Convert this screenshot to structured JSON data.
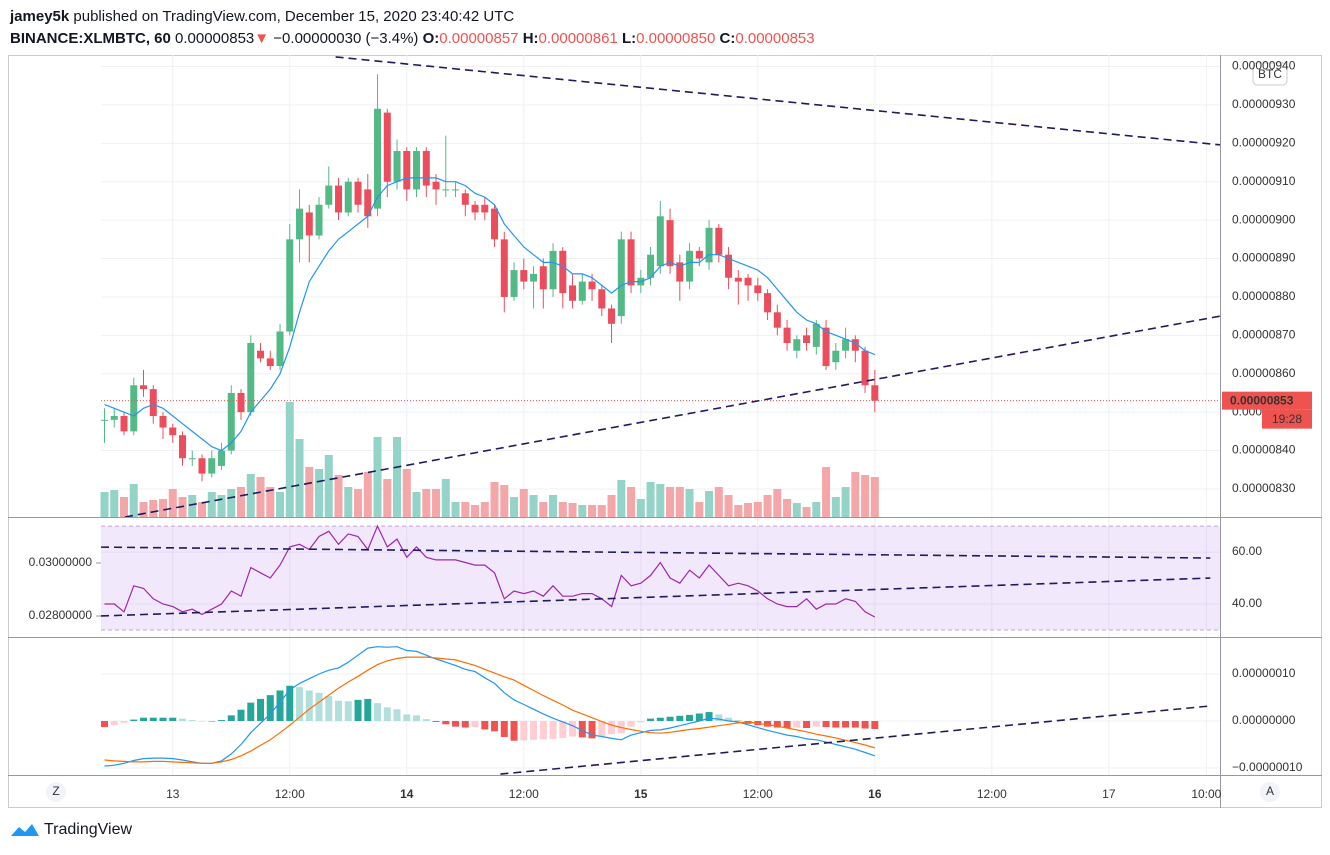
{
  "header": {
    "author": "jamey5k",
    "published": "published on TradingView.com, December 15, 2020 23:40:42 UTC",
    "symbol": "BINANCE:XLMBTC, 60",
    "last": "0.00000853",
    "arrow": "▼",
    "change": "−0.00000030 (−3.4%)",
    "o_label": "O:",
    "o": "0.00000857",
    "h_label": "H:",
    "h": "0.00000861",
    "l_label": "L:",
    "l": "0.00000850",
    "c_label": "C:",
    "c": "0.00000853"
  },
  "chart_data": {
    "type": "candlestick",
    "currency": "BTC",
    "up_color": "#53b987",
    "down_color": "#eb4d5c",
    "volume_up_color": "#94d3c8",
    "volume_down_color": "#f4a6a9",
    "xlim": [
      -0.36,
      114.4
    ],
    "xticks": [
      {
        "value": 7,
        "label": "13",
        "bold": false
      },
      {
        "value": 19,
        "label": "12:00",
        "bold": false
      },
      {
        "value": 31,
        "label": "14",
        "bold": true
      },
      {
        "value": 43,
        "label": "12:00",
        "bold": false
      },
      {
        "value": 55,
        "label": "15",
        "bold": true
      },
      {
        "value": 67,
        "label": "12:00",
        "bold": false
      },
      {
        "value": 79,
        "label": "16",
        "bold": true
      },
      {
        "value": 91,
        "label": "12:00",
        "bold": false
      },
      {
        "value": 103,
        "label": "17",
        "bold": false
      },
      {
        "value": 113,
        "label": "10:00",
        "bold": false
      }
    ],
    "ylim": [
      8.227e-06,
      9.43e-06
    ],
    "yticks": [
      {
        "value": 8.3e-06,
        "label": "0.00000830"
      },
      {
        "value": 8.4e-06,
        "label": "0.00000840"
      },
      {
        "value": 8.5e-06,
        "label": "0.00000850"
      },
      {
        "value": 8.6e-06,
        "label": "0.00000860"
      },
      {
        "value": 8.7e-06,
        "label": "0.00000870"
      },
      {
        "value": 8.8e-06,
        "label": "0.00000880"
      },
      {
        "value": 8.9e-06,
        "label": "0.00000890"
      },
      {
        "value": 9e-06,
        "label": "0.00000900"
      },
      {
        "value": 9.1e-06,
        "label": "0.00000910"
      },
      {
        "value": 9.2e-06,
        "label": "0.00000920"
      },
      {
        "value": 9.3e-06,
        "label": "0.00000930"
      },
      {
        "value": 9.4e-06,
        "label": "0.00000940"
      }
    ],
    "grid": true,
    "candles": [
      [
        8.48e-06,
        8.51e-06,
        8.42e-06,
        8.48e-06
      ],
      [
        8.48e-06,
        8.51e-06,
        8.46e-06,
        8.49e-06
      ],
      [
        8.49e-06,
        8.5e-06,
        8.44e-06,
        8.45e-06
      ],
      [
        8.45e-06,
        8.59e-06,
        8.44e-06,
        8.57e-06
      ],
      [
        8.57e-06,
        8.61e-06,
        8.54e-06,
        8.56e-06
      ],
      [
        8.56e-06,
        8.57e-06,
        8.47e-06,
        8.49e-06
      ],
      [
        8.49e-06,
        8.5e-06,
        8.43e-06,
        8.46e-06
      ],
      [
        8.46e-06,
        8.47e-06,
        8.42e-06,
        8.44e-06
      ],
      [
        8.44e-06,
        8.45e-06,
        8.36e-06,
        8.38e-06
      ],
      [
        8.38e-06,
        8.4e-06,
        8.36e-06,
        8.38e-06
      ],
      [
        8.38e-06,
        8.39e-06,
        8.32e-06,
        8.34e-06
      ],
      [
        8.34e-06,
        8.4e-06,
        8.33e-06,
        8.38e-06
      ],
      [
        8.36e-06,
        8.42e-06,
        8.35e-06,
        8.4e-06
      ],
      [
        8.4e-06,
        8.57e-06,
        8.39e-06,
        8.55e-06
      ],
      [
        8.55e-06,
        8.56e-06,
        8.48e-06,
        8.5e-06
      ],
      [
        8.5e-06,
        8.7e-06,
        8.49e-06,
        8.68e-06
      ],
      [
        8.66e-06,
        8.68e-06,
        8.63e-06,
        8.64e-06
      ],
      [
        8.64e-06,
        8.66e-06,
        8.61e-06,
        8.62e-06
      ],
      [
        8.62e-06,
        8.73e-06,
        8.61e-06,
        8.71e-06
      ],
      [
        8.71e-06,
        8.99e-06,
        8.7e-06,
        8.95e-06
      ],
      [
        8.95e-06,
        9.08e-06,
        8.89e-06,
        9.03e-06
      ],
      [
        9.02e-06,
        9.04e-06,
        8.89e-06,
        8.96e-06
      ],
      [
        8.96e-06,
        9.06e-06,
        8.95e-06,
        9.04e-06
      ],
      [
        9.04e-06,
        9.14e-06,
        9.03e-06,
        9.09e-06
      ],
      [
        9.09e-06,
        9.11e-06,
        9e-06,
        9.02e-06
      ],
      [
        9.02e-06,
        9.11e-06,
        9.01e-06,
        9.1e-06
      ],
      [
        9.1e-06,
        9.11e-06,
        9.02e-06,
        9.04e-06
      ],
      [
        9.08e-06,
        9.12e-06,
        8.98e-06,
        9.01e-06
      ],
      [
        9.03e-06,
        9.38e-06,
        9.01e-06,
        9.29e-06
      ],
      [
        9.28e-06,
        9.29e-06,
        9.06e-06,
        9.1e-06
      ],
      [
        9.1e-06,
        9.21e-06,
        9.08e-06,
        9.18e-06
      ],
      [
        9.18e-06,
        9.19e-06,
        9.05e-06,
        9.08e-06
      ],
      [
        9.08e-06,
        9.19e-06,
        9.06e-06,
        9.18e-06
      ],
      [
        9.18e-06,
        9.19e-06,
        9.06e-06,
        9.09e-06
      ],
      [
        9.1e-06,
        9.12e-06,
        9.04e-06,
        9.08e-06
      ],
      [
        9.08e-06,
        9.22e-06,
        9.06e-06,
        9.08e-06
      ],
      [
        9.08e-06,
        9.1e-06,
        9.06e-06,
        9.08e-06
      ],
      [
        9.07e-06,
        9.08e-06,
        9.01e-06,
        9.04e-06
      ],
      [
        9.04e-06,
        9.05e-06,
        9e-06,
        9.02e-06
      ],
      [
        9.04e-06,
        9.06e-06,
        9e-06,
        9.02e-06
      ],
      [
        9.03e-06,
        9.04e-06,
        8.93e-06,
        8.95e-06
      ],
      [
        8.95e-06,
        8.97e-06,
        8.76e-06,
        8.8e-06
      ],
      [
        8.8e-06,
        8.89e-06,
        8.79e-06,
        8.87e-06
      ],
      [
        8.87e-06,
        8.9e-06,
        8.82e-06,
        8.84e-06
      ],
      [
        8.84e-06,
        8.88e-06,
        8.77e-06,
        8.86e-06
      ],
      [
        8.88e-06,
        8.9e-06,
        8.77e-06,
        8.82e-06
      ],
      [
        8.82e-06,
        8.94e-06,
        8.8e-06,
        8.92e-06
      ],
      [
        8.92e-06,
        8.93e-06,
        8.77e-06,
        8.81e-06
      ],
      [
        8.83e-06,
        8.86e-06,
        8.77e-06,
        8.79e-06
      ],
      [
        8.79e-06,
        8.86e-06,
        8.78e-06,
        8.84e-06
      ],
      [
        8.84e-06,
        8.86e-06,
        8.79e-06,
        8.82e-06
      ],
      [
        8.82e-06,
        8.83e-06,
        8.75e-06,
        8.77e-06
      ],
      [
        8.77e-06,
        8.78e-06,
        8.68e-06,
        8.73e-06
      ],
      [
        8.75e-06,
        8.97e-06,
        8.73e-06,
        8.95e-06
      ],
      [
        8.95e-06,
        8.97e-06,
        8.81e-06,
        8.83e-06
      ],
      [
        8.83e-06,
        8.87e-06,
        8.81e-06,
        8.85e-06
      ],
      [
        8.85e-06,
        8.93e-06,
        8.83e-06,
        8.91e-06
      ],
      [
        8.88e-06,
        9.05e-06,
        8.86e-06,
        9.01e-06
      ],
      [
        9e-06,
        9.03e-06,
        8.86e-06,
        8.88e-06
      ],
      [
        8.89e-06,
        8.91e-06,
        8.79e-06,
        8.84e-06
      ],
      [
        8.84e-06,
        8.94e-06,
        8.82e-06,
        8.92e-06
      ],
      [
        8.92e-06,
        8.93e-06,
        8.88e-06,
        8.9e-06
      ],
      [
        8.89e-06,
        9e-06,
        8.87e-06,
        8.98e-06
      ],
      [
        8.98e-06,
        8.99e-06,
        8.89e-06,
        8.91e-06
      ],
      [
        8.91e-06,
        8.93e-06,
        8.82e-06,
        8.85e-06
      ],
      [
        8.85e-06,
        8.87e-06,
        8.78e-06,
        8.84e-06
      ],
      [
        8.85e-06,
        8.86e-06,
        8.79e-06,
        8.83e-06
      ],
      [
        8.83e-06,
        8.85e-06,
        8.79e-06,
        8.81e-06
      ],
      [
        8.81e-06,
        8.82e-06,
        8.74e-06,
        8.76e-06
      ],
      [
        8.76e-06,
        8.78e-06,
        8.7e-06,
        8.72e-06
      ],
      [
        8.72e-06,
        8.74e-06,
        8.66e-06,
        8.68e-06
      ],
      [
        8.66e-06,
        8.7e-06,
        8.64e-06,
        8.69e-06
      ],
      [
        8.7e-06,
        8.72e-06,
        8.66e-06,
        8.68e-06
      ],
      [
        8.67e-06,
        8.74e-06,
        8.65e-06,
        8.73e-06
      ],
      [
        8.72e-06,
        8.74e-06,
        8.61e-06,
        8.62e-06
      ],
      [
        8.63e-06,
        8.68e-06,
        8.61e-06,
        8.66e-06
      ],
      [
        8.66e-06,
        8.72e-06,
        8.64e-06,
        8.69e-06
      ],
      [
        8.69e-06,
        8.7e-06,
        8.63e-06,
        8.66e-06
      ],
      [
        8.66e-06,
        8.67e-06,
        8.55e-06,
        8.57e-06
      ],
      [
        8.57e-06,
        8.61e-06,
        8.5e-06,
        8.53e-06
      ]
    ],
    "volume": [
      25,
      27,
      20,
      33,
      15,
      17,
      18,
      28,
      20,
      22,
      15,
      25,
      22,
      28,
      30,
      43,
      40,
      30,
      25,
      115,
      78,
      50,
      48,
      62,
      42,
      30,
      28,
      45,
      80,
      38,
      80,
      48,
      25,
      28,
      28,
      38,
      15,
      15,
      12,
      15,
      35,
      32,
      20,
      28,
      22,
      15,
      22,
      15,
      14,
      12,
      12,
      12,
      22,
      37,
      30,
      18,
      35,
      33,
      30,
      30,
      28,
      15,
      26,
      30,
      22,
      12,
      14,
      15,
      22,
      28,
      18,
      14,
      10,
      15,
      50,
      20,
      30,
      45,
      42,
      40
    ],
    "ma": {
      "color": "#2196f3",
      "values": [
        8.52e-06,
        8.51e-06,
        8.5e-06,
        8.49e-06,
        8.51e-06,
        8.52e-06,
        8.51e-06,
        8.49e-06,
        8.47e-06,
        8.45e-06,
        8.43e-06,
        8.41e-06,
        8.4e-06,
        8.42e-06,
        8.45e-06,
        8.5e-06,
        8.53e-06,
        8.56e-06,
        8.6e-06,
        8.67e-06,
        8.76e-06,
        8.84e-06,
        8.88e-06,
        8.92e-06,
        8.95e-06,
        8.97e-06,
        8.99e-06,
        9.01e-06,
        9.06e-06,
        9.09e-06,
        9.1e-06,
        9.11e-06,
        9.11e-06,
        9.11e-06,
        9.11e-06,
        9.1e-06,
        9.1e-06,
        9.09e-06,
        9.07e-06,
        9.06e-06,
        9.04e-06,
        8.99e-06,
        8.96e-06,
        8.93e-06,
        8.91e-06,
        8.89e-06,
        8.89e-06,
        8.88e-06,
        8.86e-06,
        8.86e-06,
        8.85e-06,
        8.83e-06,
        8.81e-06,
        8.83e-06,
        8.84e-06,
        8.84e-06,
        8.85e-06,
        8.88e-06,
        8.89e-06,
        8.88e-06,
        8.89e-06,
        8.89e-06,
        8.91e-06,
        8.91e-06,
        8.9e-06,
        8.89e-06,
        8.88e-06,
        8.87e-06,
        8.85e-06,
        8.82e-06,
        8.79e-06,
        8.76e-06,
        8.74e-06,
        8.73e-06,
        8.71e-06,
        8.7e-06,
        8.69e-06,
        8.68e-06,
        8.66e-06,
        8.65e-06
      ]
    },
    "last_price": {
      "value": 8.53e-06,
      "label": "0.00000853",
      "countdown": "19:28",
      "color": "#ef5350"
    },
    "drawings": [
      {
        "pane": "price",
        "points": [
          [
            23.7,
            9.425e-06
          ],
          [
            114.4,
            9.196e-06
          ]
        ]
      },
      {
        "pane": "price",
        "points": [
          [
            2.1,
            8.227e-06
          ],
          [
            114.4,
            8.75e-06
          ]
        ]
      },
      {
        "pane": "rsi",
        "points": [
          [
            -0.36,
            61.9
          ],
          [
            113.4,
            57.7
          ]
        ]
      },
      {
        "pane": "rsi",
        "points": [
          [
            -0.36,
            35.4
          ],
          [
            113.4,
            50
          ]
        ]
      },
      {
        "pane": "macd",
        "points": [
          [
            40.6,
            -1.13e-07
          ],
          [
            113.4,
            3.2e-08
          ]
        ]
      }
    ],
    "drawing_color": "#1e1b5e",
    "rsi": {
      "color": "#9c27b0",
      "band": [
        30,
        70
      ],
      "band_color": "rgba(155, 80, 230, 0.13)",
      "ylim": [
        27.3,
        73.5
      ],
      "yticks": [
        {
          "value": 40,
          "label": "40.00"
        },
        {
          "value": 60,
          "label": "60.00"
        }
      ],
      "left_ylim": [
        0.027208,
        0.031736
      ],
      "left_yticks": [
        {
          "value": 0.028,
          "label": "0.02800000"
        },
        {
          "value": 0.03,
          "label": "0.03000000"
        }
      ],
      "values": [
        40,
        40,
        37,
        47,
        46,
        42,
        40,
        39,
        37,
        38,
        36,
        38,
        40,
        45,
        43,
        54,
        52,
        50,
        55,
        62,
        63,
        61,
        66,
        68,
        63,
        67,
        66,
        61,
        70,
        62,
        65,
        58,
        62,
        58,
        57,
        57,
        57,
        56,
        55,
        55,
        52,
        42,
        45,
        44,
        45,
        43,
        47,
        43,
        43,
        44,
        44,
        42,
        39,
        51,
        47,
        48,
        51,
        56,
        50,
        48,
        53,
        50,
        55,
        51,
        47,
        48,
        47,
        45,
        42,
        40,
        39,
        39,
        42,
        38,
        40,
        40,
        42,
        41,
        37,
        35
      ]
    },
    "macd": {
      "macd_color": "#2196f3",
      "signal_color": "#ff6d00",
      "hist_colors": [
        "#26a69a",
        "#b2dfdb",
        "#ef5350",
        "#ffcdd2"
      ],
      "ylim": [
        -1.149e-07,
        1.787e-07
      ],
      "yticks": [
        {
          "value": 1e-07,
          "label": "0.00000010"
        },
        {
          "value": 0,
          "label": "0.00000000"
        },
        {
          "value": -1e-07,
          "label": "−0.00000010"
        }
      ],
      "macd": [
        -9.6e-08,
        -9.4e-08,
        -9e-08,
        -8.4e-08,
        -8e-08,
        -7.9e-08,
        -7.9e-08,
        -8e-08,
        -8.3e-08,
        -8.7e-08,
        -9e-08,
        -9e-08,
        -8.5e-08,
        -7e-08,
        -5e-08,
        -2.5e-08,
        -5e-09,
        1.5e-08,
        4e-08,
        6.6e-08,
        8e-08,
        9e-08,
        1e-07,
        1.08e-07,
        1.13e-07,
        1.25e-07,
        1.4e-07,
        1.55e-07,
        1.58e-07,
        1.57e-07,
        1.58e-07,
        1.5e-07,
        1.48e-07,
        1.4e-07,
        1.32e-07,
        1.25e-07,
        1.18e-07,
        1.1e-07,
        1.05e-07,
        9.2e-08,
        8e-08,
        6e-08,
        4.5e-08,
        3.5e-08,
        2.5e-08,
        1.5e-08,
        6e-09,
        -2e-09,
        -1e-08,
        -2e-08,
        -3e-08,
        -3.3e-08,
        -3.7e-08,
        -4e-08,
        -3e-08,
        -2.5e-08,
        -2e-08,
        -1.9e-08,
        -1.5e-08,
        -1e-08,
        -5e-09,
        0,
        6e-09,
        4e-09,
        0,
        -2e-09,
        -8e-09,
        -1.4e-08,
        -2e-08,
        -2.5e-08,
        -3e-08,
        -3.3e-08,
        -3.8e-08,
        -4e-08,
        -4.5e-08,
        -5e-08,
        -5.5e-08,
        -6e-08,
        -6.7e-08,
        -7.4e-08
      ],
      "signal": [
        -8.3e-08,
        -8.5e-08,
        -8.6e-08,
        -8.7e-08,
        -8.7e-08,
        -8.6e-08,
        -8.6e-08,
        -8.7e-08,
        -8.8e-08,
        -8.9e-08,
        -9e-08,
        -9e-08,
        -8.7e-08,
        -8.2e-08,
        -7.4e-08,
        -6.4e-08,
        -5.2e-08,
        -4e-08,
        -2.5e-08,
        -9e-09,
        8e-09,
        2.5e-08,
        4e-08,
        5.5e-08,
        7e-08,
        8.3e-08,
        9.5e-08,
        1.08e-07,
        1.2e-07,
        1.28e-07,
        1.33e-07,
        1.36e-07,
        1.36e-07,
        1.36e-07,
        1.34e-07,
        1.32e-07,
        1.3e-07,
        1.24e-07,
        1.18e-07,
        1.1e-07,
        1.02e-07,
        9.4e-08,
        8.7e-08,
        7.6e-08,
        6.5e-08,
        5.4e-08,
        4.4e-08,
        3.4e-08,
        2.3e-08,
        1.5e-08,
        7e-09,
        -1e-09,
        -9e-09,
        -1.4e-08,
        -1.8e-08,
        -2.2e-08,
        -2.5e-08,
        -2.6e-08,
        -2.4e-08,
        -2.1e-08,
        -1.8e-08,
        -1.6e-08,
        -1.3e-08,
        -1e-08,
        -7e-09,
        -4e-09,
        -2e-09,
        -5e-09,
        -8e-09,
        -1.1e-08,
        -1.5e-08,
        -1.9e-08,
        -2.3e-08,
        -2.8e-08,
        -3.2e-08,
        -3.6e-08,
        -4.1e-08,
        -4.6e-08,
        -5.1e-08,
        -5.7e-08
      ],
      "hist": [
        -1.3e-08,
        -9e-09,
        -4e-09,
        3e-09,
        7e-09,
        7e-09,
        7e-09,
        7e-09,
        5e-09,
        2e-09,
        0,
        0,
        2e-09,
        1.2e-08,
        2.4e-08,
        3.9e-08,
        4.7e-08,
        5.5e-08,
        6.5e-08,
        7.5e-08,
        7.2e-08,
        6.5e-08,
        6e-08,
        5.3e-08,
        4.3e-08,
        4.2e-08,
        4.5e-08,
        4.7e-08,
        3.8e-08,
        2.9e-08,
        2.5e-08,
        1.4e-08,
        1.2e-08,
        4e-09,
        -2e-09,
        -7e-09,
        -1.2e-08,
        -1.4e-08,
        -1.3e-08,
        -1.8e-08,
        -2.2e-08,
        -3.4e-08,
        -4.2e-08,
        -4.1e-08,
        -4e-08,
        -3.9e-08,
        -3.8e-08,
        -3.6e-08,
        -3.3e-08,
        -3.5e-08,
        -3.7e-08,
        -3.2e-08,
        -2.8e-08,
        -2.6e-08,
        -1.2e-08,
        -3e-09,
        5e-09,
        7e-09,
        9e-09,
        1.1e-08,
        1.3e-08,
        1.6e-08,
        1.9e-08,
        1.4e-08,
        7e-09,
        2e-09,
        -6e-09,
        -9e-09,
        -1.2e-08,
        -1.4e-08,
        -1.5e-08,
        -1.4e-08,
        -1.5e-08,
        -1.2e-08,
        -1.3e-08,
        -1.4e-08,
        -1.4e-08,
        -1.4e-08,
        -1.6e-08,
        -1.7e-08
      ]
    }
  },
  "footer": {
    "brand": "TradingView",
    "left_button": "Z",
    "right_button": "A"
  }
}
